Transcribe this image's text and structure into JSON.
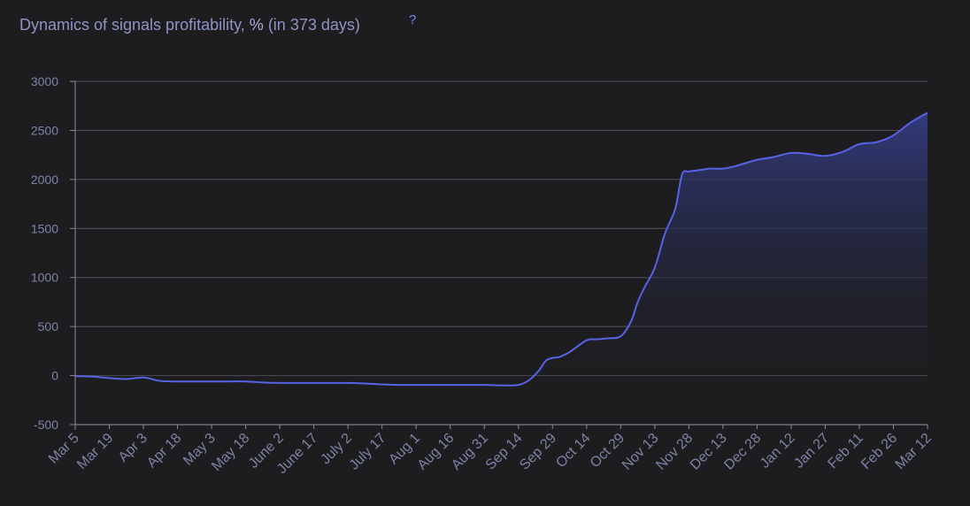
{
  "header": {
    "title": "Dynamics of signals profitability,",
    "unit": "%",
    "period": "(in 373 days)",
    "help": "?"
  },
  "chart_data": {
    "type": "area",
    "title": "Dynamics of signals profitability, % (in 373 days)",
    "xlabel": "",
    "ylabel": "",
    "ylim": [
      -500,
      3000
    ],
    "yticks": [
      -500,
      0,
      500,
      1000,
      1500,
      2000,
      2500,
      3000
    ],
    "grid": true,
    "legend": "none",
    "colors": {
      "line": "#5862e6",
      "fill_top": "#323a7c",
      "fill_bottom": "#1d1d1f",
      "grid": "#4a4a52",
      "axis": "#8a8a95"
    },
    "categories": [
      "Mar 5",
      "Mar 19",
      "Apr 3",
      "Apr 18",
      "May 3",
      "May 18",
      "June 2",
      "June 17",
      "July 2",
      "July 17",
      "Aug 1",
      "Aug 16",
      "Aug 31",
      "Sep 14",
      "Sep 29",
      "Oct 14",
      "Oct 29",
      "Nov 13",
      "Nov 28",
      "Dec 13",
      "Dec 28",
      "Jan 12",
      "Jan 27",
      "Feb 11",
      "Feb 26",
      "Mar 12"
    ],
    "series": [
      {
        "name": "",
        "x": [
          0,
          0.5,
          1,
          1.5,
          2,
          2.5,
          3,
          3.5,
          4,
          4.5,
          5,
          5.5,
          6,
          6.5,
          7,
          7.5,
          8,
          8.5,
          9,
          9.5,
          10,
          10.5,
          11,
          11.5,
          12,
          12.5,
          13,
          13.3,
          13.6,
          13.8,
          14,
          14.2,
          14.5,
          15,
          15.3,
          15.6,
          16,
          16.3,
          16.5,
          16.7,
          17,
          17.3,
          17.6,
          17.8,
          18,
          18.2,
          18.4,
          18.6,
          18.8,
          19,
          19.3,
          19.6,
          20,
          20.5,
          21,
          21.5,
          22,
          22.5,
          23,
          23.5,
          24,
          24.5,
          25
        ],
        "values": [
          -5,
          -10,
          -25,
          -35,
          -20,
          -55,
          -60,
          -60,
          -60,
          -60,
          -60,
          -70,
          -75,
          -75,
          -75,
          -75,
          -75,
          -80,
          -90,
          -95,
          -95,
          -95,
          -95,
          -95,
          -95,
          -100,
          -95,
          -50,
          50,
          150,
          180,
          190,
          240,
          360,
          370,
          380,
          400,
          550,
          750,
          900,
          1100,
          1450,
          1700,
          2050,
          2080,
          2090,
          2100,
          2110,
          2110,
          2110,
          2130,
          2160,
          2200,
          2230,
          2270,
          2260,
          2240,
          2280,
          2360,
          2380,
          2450,
          2580,
          2680
        ]
      }
    ]
  }
}
